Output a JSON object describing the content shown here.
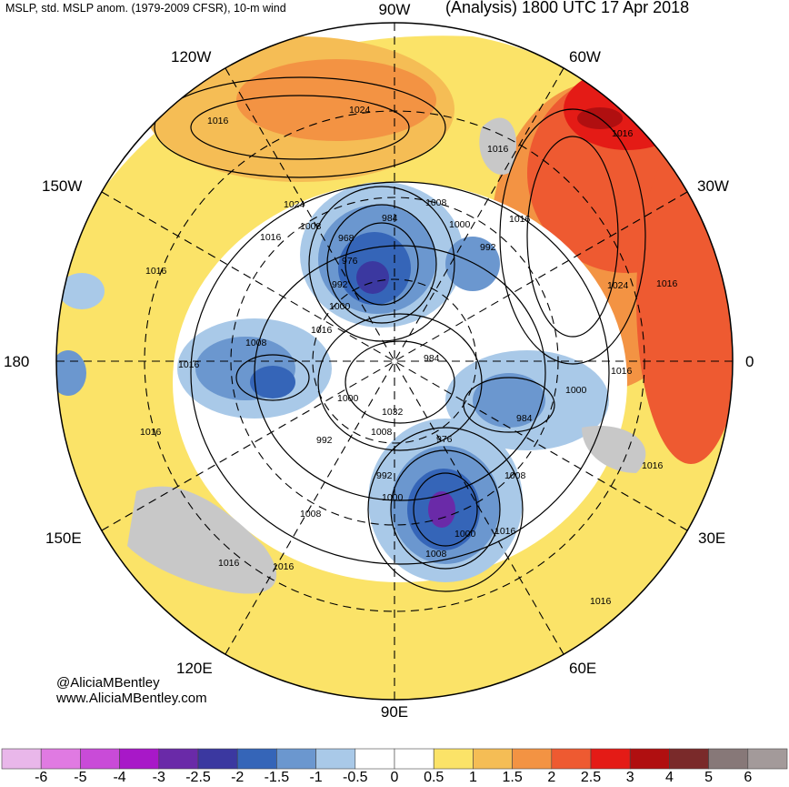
{
  "header": {
    "left": "MSLP, std. MSLP anom. (1979-2009 CFSR), 10-m wind",
    "right": "(Analysis) 1800 UTC 17 Apr 2018"
  },
  "credits": {
    "handle": "@AliciaMBentley",
    "site": "www.AliciaMBentley.com"
  },
  "longitudes": {
    "top": "90W",
    "bottom": "90E",
    "left": "180",
    "right": "0",
    "w120": "120W",
    "w60": "60W",
    "w150": "150W",
    "w30": "30W",
    "e150": "150E",
    "e30": "30E",
    "e120": "120E",
    "e60": "60E"
  },
  "isobar_labels": [
    "1016",
    "1024",
    "1016",
    "1016",
    "1024",
    "1008",
    "1008",
    "1000",
    "1016",
    "984",
    "968",
    "992",
    "976",
    "992",
    "1016",
    "1024",
    "1016",
    "1000",
    "1016",
    "1008",
    "1016",
    "1016",
    "1000",
    "984",
    "984",
    "1000",
    "1032",
    "1008",
    "992",
    "976",
    "992",
    "1016",
    "1008",
    "1000",
    "1008",
    "1016",
    "1008",
    "1000",
    "1016",
    "1016",
    "1016",
    "1016",
    "1016"
  ],
  "colorbar": {
    "labels": [
      "-6",
      "-5",
      "-4",
      "-3",
      "-2.5",
      "-2",
      "-1.5",
      "-1",
      "-0.5",
      "0",
      "0.5",
      "1",
      "1.5",
      "2",
      "2.5",
      "3",
      "4",
      "5",
      "6"
    ],
    "colors": [
      "#e9b7ea",
      "#e07ae2",
      "#c94bd8",
      "#a818c8",
      "#6a2aa8",
      "#3b38a0",
      "#3565b8",
      "#6b97cf",
      "#a9c9e8",
      "#ffffff",
      "#ffffff",
      "#fbe368",
      "#f5bd55",
      "#f39343",
      "#ee5a31",
      "#e41b16",
      "#b00f10",
      "#7a2a2a",
      "#877878",
      "#a39a9a"
    ]
  }
}
